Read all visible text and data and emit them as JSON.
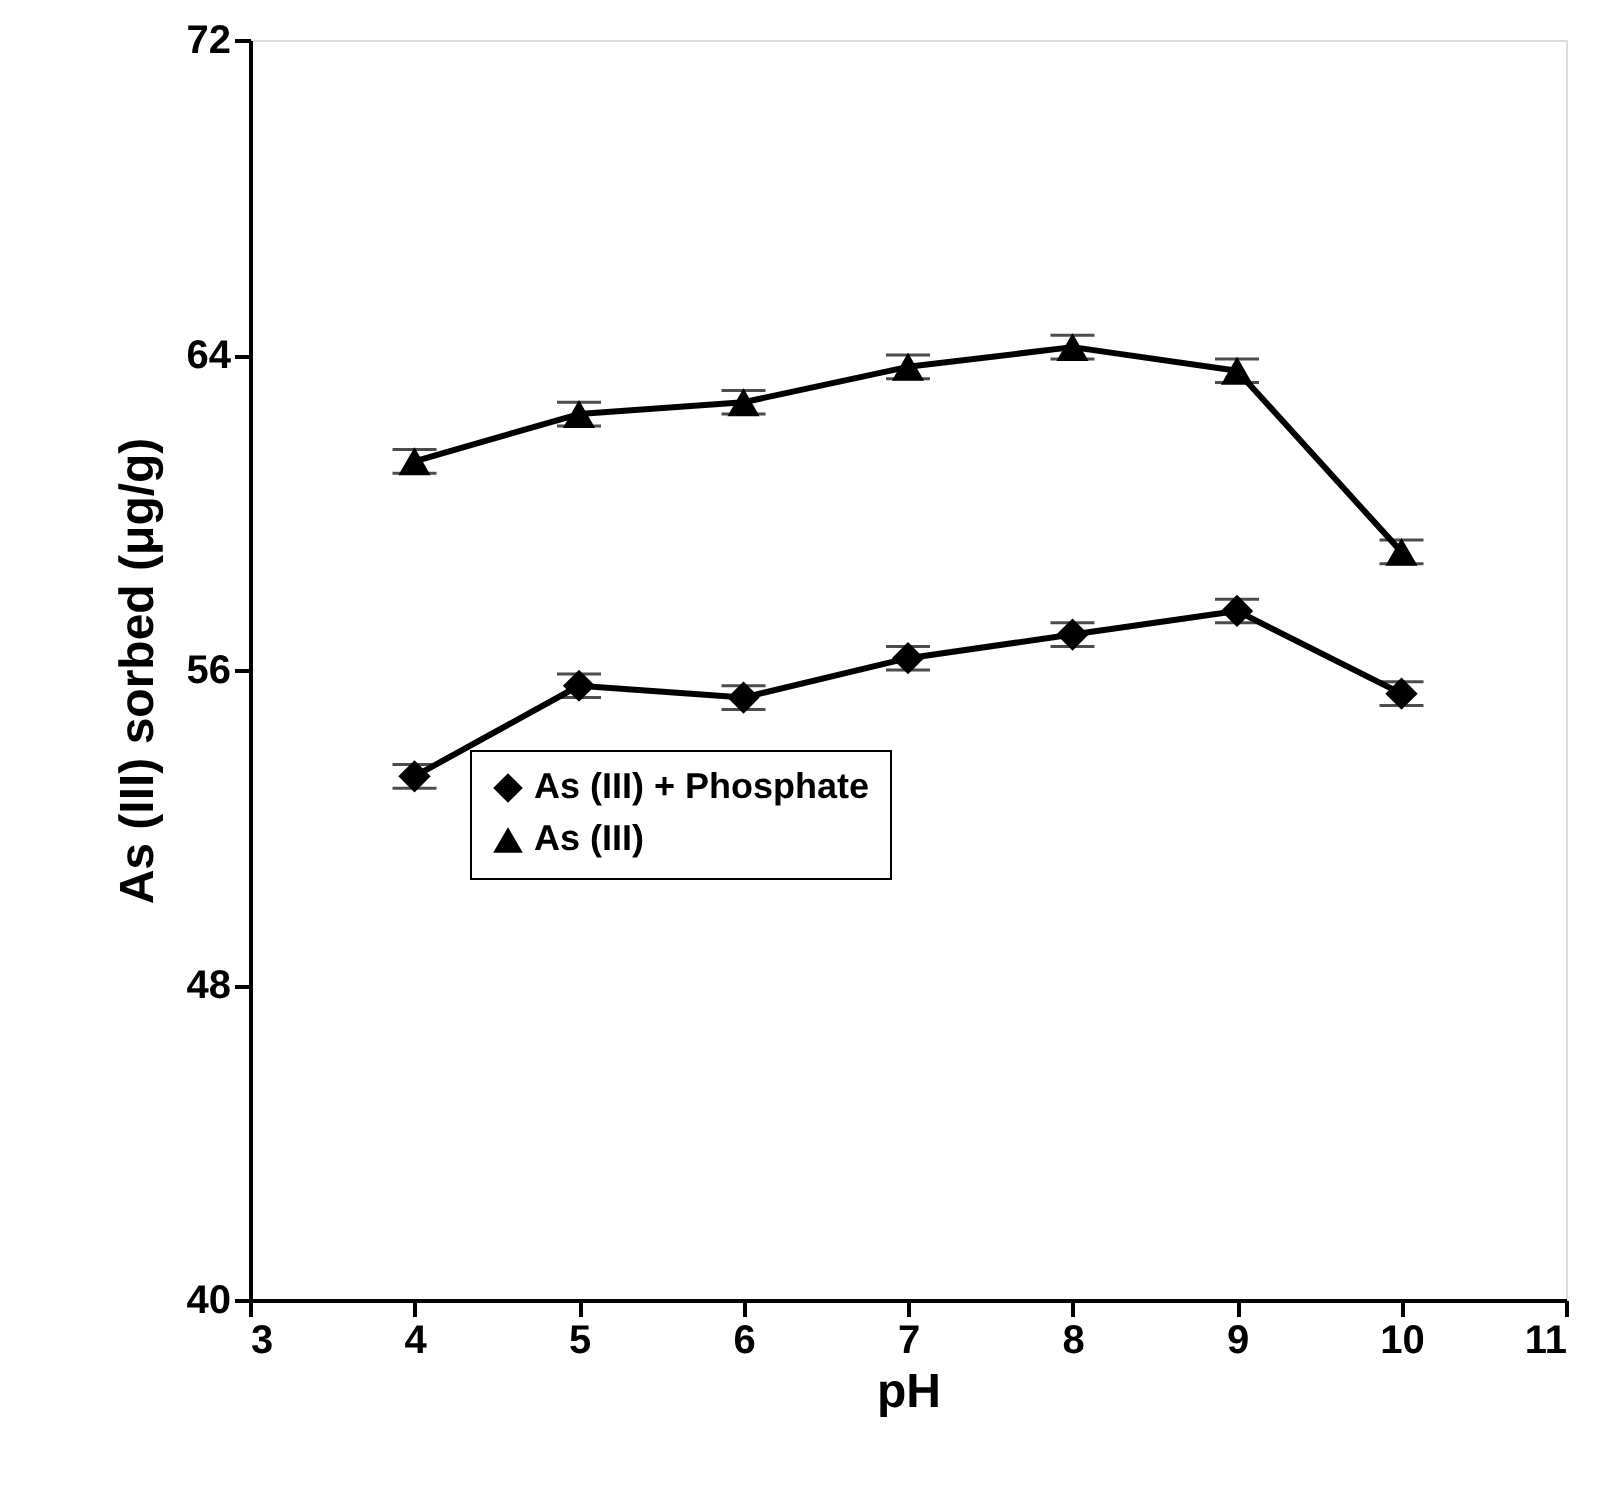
{
  "chart_data": {
    "type": "line",
    "xlabel": "pH",
    "ylabel": "As (III) sorbed (μg/g)",
    "x": [
      4,
      5,
      6,
      7,
      8,
      9,
      10
    ],
    "series": [
      {
        "name": "As (III) + Phosphate",
        "color": "#000000",
        "marker": "diamond",
        "values": [
          53.3,
          55.6,
          55.3,
          56.3,
          56.9,
          57.5,
          55.4
        ],
        "errors": [
          0.3,
          0.3,
          0.3,
          0.3,
          0.3,
          0.3,
          0.3
        ]
      },
      {
        "name": "As (III)",
        "color": "#000000",
        "marker": "triangle",
        "values": [
          61.3,
          62.5,
          62.8,
          63.7,
          64.2,
          63.6,
          59.0
        ],
        "errors": [
          0.3,
          0.3,
          0.3,
          0.3,
          0.3,
          0.3,
          0.3
        ]
      }
    ],
    "xlim": [
      3,
      11
    ],
    "xticks": [
      3,
      4,
      5,
      6,
      7,
      8,
      9,
      10,
      11
    ],
    "ylim": [
      40,
      72
    ],
    "yticks": [
      40,
      48,
      56,
      64,
      72
    ],
    "grid": false,
    "legend": "center",
    "line_style": "solid"
  }
}
